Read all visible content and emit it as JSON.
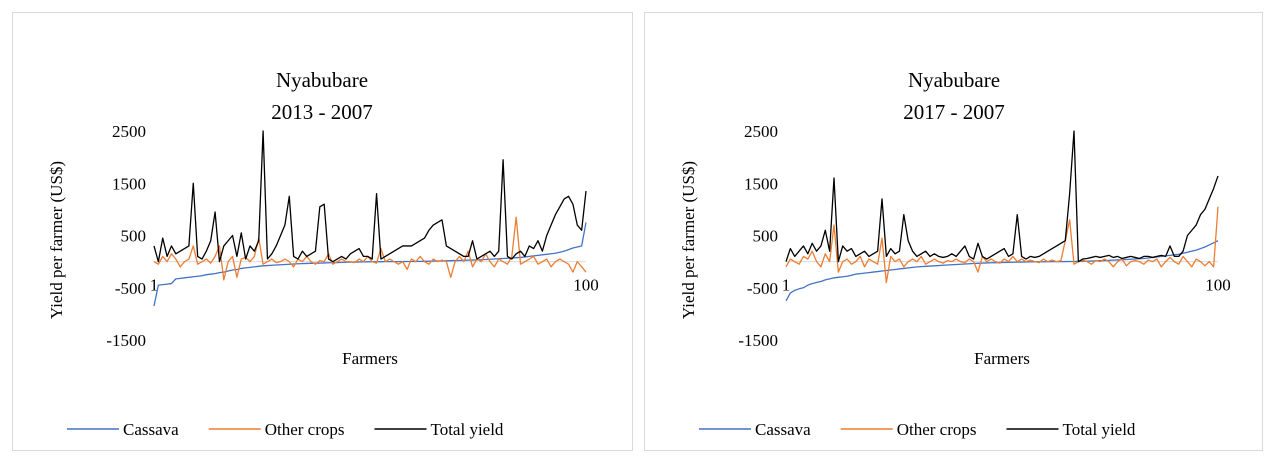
{
  "chart_data": [
    {
      "type": "line",
      "title": "Nyabubare",
      "subtitle": "2013 - 2007",
      "x_label": "Farmers",
      "y_label": "Yield per farmer (US$)",
      "x": [
        1,
        2,
        3,
        4,
        5,
        6,
        7,
        8,
        9,
        10,
        11,
        12,
        13,
        14,
        15,
        16,
        17,
        18,
        19,
        20,
        21,
        22,
        23,
        24,
        25,
        26,
        27,
        28,
        29,
        30,
        31,
        32,
        33,
        34,
        35,
        36,
        37,
        38,
        39,
        40,
        41,
        42,
        43,
        44,
        45,
        46,
        47,
        48,
        49,
        50,
        51,
        52,
        53,
        54,
        55,
        56,
        57,
        58,
        59,
        60,
        61,
        62,
        63,
        64,
        65,
        66,
        67,
        68,
        69,
        70,
        71,
        72,
        73,
        74,
        75,
        76,
        77,
        78,
        79,
        80,
        81,
        82,
        83,
        84,
        85,
        86,
        87,
        88,
        89,
        90,
        91,
        92,
        93,
        94,
        95,
        96,
        97,
        98,
        99,
        100
      ],
      "xlim": [
        1,
        100
      ],
      "xticks": [
        1,
        100
      ],
      "ylim": [
        -1500,
        2500
      ],
      "yticks": [
        -1500,
        -500,
        500,
        1500,
        2500
      ],
      "series": [
        {
          "name": "Cassava",
          "color": "#4472c4",
          "values": [
            -850,
            -450,
            -440,
            -430,
            -420,
            -330,
            -320,
            -310,
            -300,
            -290,
            -280,
            -270,
            -250,
            -240,
            -230,
            -210,
            -200,
            -180,
            -160,
            -150,
            -130,
            -120,
            -110,
            -100,
            -90,
            -80,
            -75,
            -70,
            -65,
            -60,
            -55,
            -50,
            -45,
            -40,
            -38,
            -35,
            -32,
            -30,
            -28,
            -25,
            -22,
            -20,
            -18,
            -15,
            -12,
            -10,
            -8,
            -6,
            -5,
            -4,
            -3,
            -2,
            -1,
            0,
            0,
            0,
            0,
            1,
            2,
            3,
            4,
            5,
            6,
            8,
            10,
            12,
            14,
            16,
            18,
            20,
            22,
            25,
            28,
            30,
            33,
            36,
            40,
            45,
            50,
            55,
            60,
            65,
            70,
            75,
            80,
            90,
            100,
            110,
            120,
            130,
            140,
            150,
            160,
            180,
            200,
            230,
            260,
            280,
            300,
            750
          ]
        },
        {
          "name": "Other crops",
          "color": "#ed7d31",
          "values": [
            0,
            -50,
            100,
            0,
            150,
            50,
            -100,
            0,
            50,
            300,
            -50,
            0,
            50,
            -30,
            100,
            300,
            -350,
            0,
            100,
            -300,
            50,
            80,
            0,
            100,
            450,
            -50,
            0,
            50,
            -20,
            0,
            50,
            0,
            -100,
            50,
            0,
            100,
            0,
            -50,
            20,
            0,
            150,
            -50,
            0,
            50,
            0,
            0,
            -20,
            50,
            0,
            100,
            0,
            -30,
            250,
            0,
            50,
            0,
            -50,
            0,
            -150,
            50,
            0,
            100,
            0,
            -50,
            50,
            0,
            30,
            0,
            -300,
            0,
            100,
            0,
            200,
            -100,
            50,
            0,
            150,
            0,
            -100,
            50,
            0,
            -50,
            100,
            850,
            -50,
            0,
            50,
            100,
            -50,
            0,
            50,
            -100,
            0,
            50,
            0,
            -50,
            -200,
            0,
            -100,
            -200
          ]
        },
        {
          "name": "Total yield",
          "color": "#000000",
          "values": [
            300,
            0,
            450,
            100,
            300,
            150,
            200,
            250,
            300,
            1500,
            100,
            50,
            200,
            400,
            950,
            0,
            300,
            400,
            500,
            100,
            550,
            50,
            300,
            200,
            400,
            2500,
            50,
            150,
            300,
            500,
            700,
            1250,
            100,
            50,
            200,
            100,
            150,
            200,
            1050,
            1100,
            50,
            0,
            50,
            100,
            50,
            150,
            200,
            250,
            100,
            100,
            50,
            1300,
            50,
            100,
            150,
            200,
            250,
            300,
            300,
            300,
            350,
            400,
            450,
            600,
            700,
            750,
            800,
            300,
            250,
            200,
            150,
            100,
            100,
            400,
            50,
            100,
            150,
            200,
            100,
            200,
            1950,
            100,
            50,
            150,
            200,
            100,
            300,
            250,
            400,
            200,
            500,
            700,
            900,
            1050,
            1200,
            1250,
            1100,
            700,
            600,
            1350
          ]
        }
      ]
    },
    {
      "type": "line",
      "title": "Nyabubare",
      "subtitle": "2017 - 2007",
      "x_label": "Farmers",
      "y_label": "Yield per farmer (US$)",
      "x": [
        1,
        2,
        3,
        4,
        5,
        6,
        7,
        8,
        9,
        10,
        11,
        12,
        13,
        14,
        15,
        16,
        17,
        18,
        19,
        20,
        21,
        22,
        23,
        24,
        25,
        26,
        27,
        28,
        29,
        30,
        31,
        32,
        33,
        34,
        35,
        36,
        37,
        38,
        39,
        40,
        41,
        42,
        43,
        44,
        45,
        46,
        47,
        48,
        49,
        50,
        51,
        52,
        53,
        54,
        55,
        56,
        57,
        58,
        59,
        60,
        61,
        62,
        63,
        64,
        65,
        66,
        67,
        68,
        69,
        70,
        71,
        72,
        73,
        74,
        75,
        76,
        77,
        78,
        79,
        80,
        81,
        82,
        83,
        84,
        85,
        86,
        87,
        88,
        89,
        90,
        91,
        92,
        93,
        94,
        95,
        96,
        97,
        98,
        99,
        100
      ],
      "xlim": [
        1,
        100
      ],
      "xticks": [
        1,
        100
      ],
      "ylim": [
        -1500,
        2500
      ],
      "yticks": [
        -1500,
        -500,
        500,
        1500,
        2500
      ],
      "series": [
        {
          "name": "Cassava",
          "color": "#4472c4",
          "values": [
            -750,
            -600,
            -550,
            -520,
            -500,
            -450,
            -420,
            -400,
            -380,
            -350,
            -330,
            -310,
            -300,
            -290,
            -280,
            -260,
            -240,
            -230,
            -220,
            -210,
            -200,
            -190,
            -180,
            -170,
            -160,
            -150,
            -140,
            -130,
            -120,
            -110,
            -100,
            -95,
            -90,
            -85,
            -80,
            -75,
            -70,
            -65,
            -60,
            -55,
            -50,
            -45,
            -40,
            -36,
            -32,
            -28,
            -25,
            -22,
            -20,
            -18,
            -16,
            -14,
            -12,
            -10,
            -8,
            -6,
            -5,
            -4,
            -3,
            -2,
            -1,
            0,
            0,
            0,
            1,
            2,
            3,
            5,
            7,
            10,
            12,
            15,
            18,
            20,
            24,
            28,
            32,
            36,
            40,
            45,
            50,
            55,
            60,
            70,
            80,
            90,
            100,
            110,
            120,
            130,
            140,
            160,
            180,
            200,
            220,
            250,
            280,
            320,
            360,
            400
          ]
        },
        {
          "name": "Other crops",
          "color": "#ed7d31",
          "values": [
            -100,
            50,
            0,
            -50,
            100,
            50,
            200,
            0,
            -100,
            150,
            0,
            700,
            -200,
            0,
            50,
            -50,
            0,
            100,
            -100,
            50,
            0,
            -50,
            450,
            -400,
            100,
            0,
            50,
            -100,
            0,
            50,
            0,
            100,
            -50,
            0,
            50,
            0,
            -30,
            20,
            0,
            50,
            0,
            -20,
            50,
            0,
            -200,
            100,
            0,
            50,
            0,
            -30,
            50,
            0,
            100,
            0,
            50,
            0,
            30,
            0,
            -20,
            50,
            0,
            30,
            0,
            20,
            400,
            800,
            -50,
            0,
            30,
            0,
            -50,
            20,
            0,
            50,
            0,
            -100,
            0,
            50,
            -80,
            0,
            20,
            0,
            -50,
            30,
            0,
            50,
            -100,
            0,
            80,
            0,
            -50,
            100,
            0,
            -100,
            50,
            0,
            -80,
            0,
            -100,
            1050
          ]
        },
        {
          "name": "Total yield",
          "color": "#000000",
          "values": [
            0,
            250,
            100,
            200,
            300,
            150,
            350,
            200,
            300,
            600,
            200,
            1600,
            0,
            300,
            200,
            250,
            100,
            150,
            200,
            100,
            150,
            200,
            1200,
            100,
            250,
            150,
            200,
            900,
            400,
            200,
            100,
            150,
            200,
            100,
            150,
            100,
            80,
            100,
            150,
            100,
            200,
            300,
            100,
            50,
            350,
            100,
            50,
            100,
            150,
            200,
            250,
            100,
            150,
            900,
            100,
            50,
            100,
            80,
            100,
            150,
            200,
            250,
            300,
            350,
            400,
            1300,
            2500,
            0,
            50,
            60,
            80,
            100,
            80,
            100,
            120,
            80,
            100,
            60,
            80,
            100,
            80,
            60,
            100,
            100,
            80,
            100,
            120,
            100,
            300,
            100,
            100,
            200,
            500,
            600,
            700,
            900,
            1000,
            1200,
            1400,
            1640
          ]
        }
      ]
    }
  ]
}
